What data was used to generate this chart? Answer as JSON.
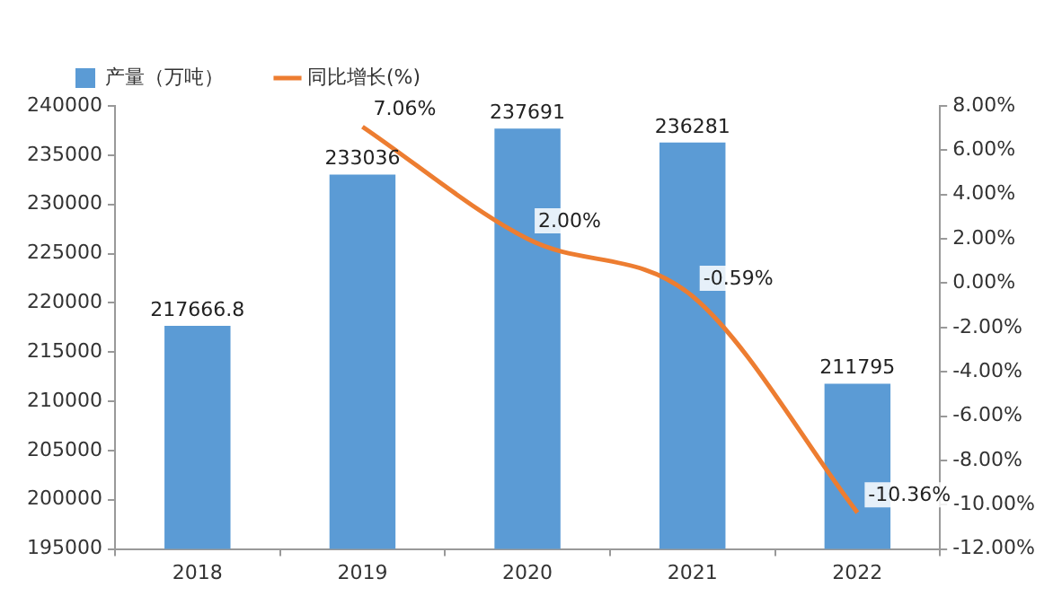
{
  "chart_data": {
    "type": "bar",
    "categories": [
      "2018",
      "2019",
      "2020",
      "2021",
      "2022"
    ],
    "series": [
      {
        "name": "产量（万吨）",
        "type": "bar",
        "color": "#5b9bd5",
        "values": [
          217666.8,
          233036,
          237691,
          236281,
          211795
        ],
        "value_labels": [
          "217666.8",
          "233036",
          "237691",
          "236281",
          "211795"
        ]
      },
      {
        "name": "同比增长(%)",
        "type": "line",
        "axis": "y2",
        "color": "#ed7d31",
        "values": [
          null,
          7.06,
          2.0,
          -0.59,
          -10.36
        ],
        "value_labels": [
          null,
          "7.06%",
          "2.00%",
          "-0.59%",
          "-10.36%"
        ]
      }
    ],
    "ylim": [
      195000,
      240000
    ],
    "yticks": [
      195000,
      200000,
      205000,
      210000,
      215000,
      220000,
      225000,
      230000,
      235000,
      240000
    ],
    "y2lim": [
      -12,
      8
    ],
    "y2ticks": [
      {
        "value": -12,
        "label": "-12.00%"
      },
      {
        "value": -10,
        "label": "-10.00%"
      },
      {
        "value": -8,
        "label": "-8.00%"
      },
      {
        "value": -6,
        "label": "-6.00%"
      },
      {
        "value": -4,
        "label": "-4.00%"
      },
      {
        "value": -2,
        "label": "-2.00%"
      },
      {
        "value": 0,
        "label": "0.00%"
      },
      {
        "value": 2,
        "label": "2.00%"
      },
      {
        "value": 4,
        "label": "4.00%"
      },
      {
        "value": 6,
        "label": "6.00%"
      },
      {
        "value": 8,
        "label": "8.00%"
      }
    ],
    "legend": "top left",
    "grid": false,
    "marker": "none",
    "line_style": "solid"
  }
}
